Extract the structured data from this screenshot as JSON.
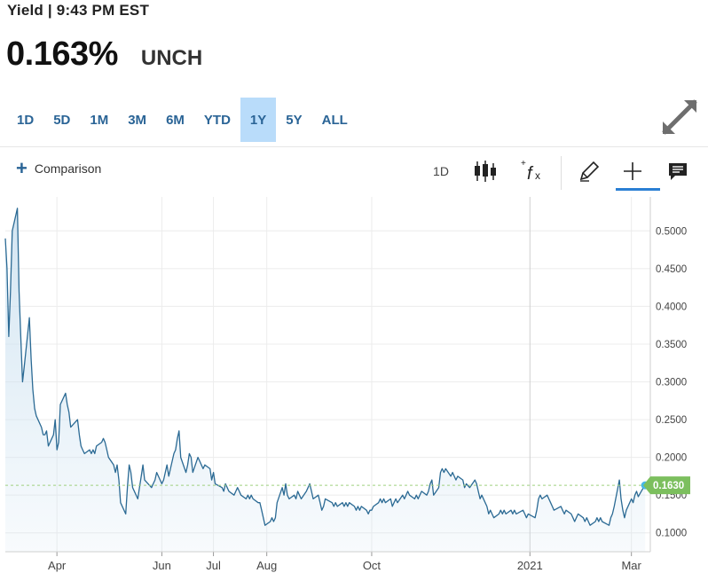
{
  "header": {
    "title": "Yield | 9:43 PM EST"
  },
  "quote": {
    "price": "0.163%",
    "change": "UNCH"
  },
  "ranges": {
    "items": [
      "1D",
      "5D",
      "1M",
      "3M",
      "6M",
      "YTD",
      "1Y",
      "5Y",
      "ALL"
    ],
    "active": "1Y"
  },
  "toolbar": {
    "comparison_label": "Comparison",
    "interval_label": "1D",
    "icons": [
      "candlestick-icon",
      "function-icon",
      "pencil-icon",
      "crosshair-icon",
      "comment-icon"
    ]
  },
  "colors": {
    "line": "#2b6a94",
    "fill": "#cfe3f1",
    "accent": "#2a6496",
    "active_range": "#b9dcfa",
    "last_price_tag": "#7cbf5e"
  },
  "chart_data": {
    "type": "area",
    "last_value_label": "0.1630",
    "last_value": 0.163,
    "ylim": [
      0.075,
      0.545
    ],
    "y_ticks": [
      "0.5000",
      "0.4500",
      "0.4000",
      "0.3500",
      "0.3000",
      "0.2500",
      "0.2000",
      "0.1500",
      "0.1000"
    ],
    "x_ticks": [
      "Apr",
      "Jun",
      "Jul",
      "Aug",
      "Oct",
      "2021",
      "Mar"
    ],
    "grid": true,
    "x_start": "2020-03-02",
    "x_end": "2021-03-12",
    "series": [
      {
        "values": [
          [
            "2020-03-02",
            0.49
          ],
          [
            "2020-03-03",
            0.45
          ],
          [
            "2020-03-04",
            0.36
          ],
          [
            "2020-03-05",
            0.42
          ],
          [
            "2020-03-06",
            0.5
          ],
          [
            "2020-03-09",
            0.53
          ],
          [
            "2020-03-10",
            0.42
          ],
          [
            "2020-03-11",
            0.36
          ],
          [
            "2020-03-12",
            0.3
          ],
          [
            "2020-03-13",
            0.32
          ],
          [
            "2020-03-16",
            0.385
          ],
          [
            "2020-03-17",
            0.33
          ],
          [
            "2020-03-18",
            0.29
          ],
          [
            "2020-03-19",
            0.265
          ],
          [
            "2020-03-20",
            0.255
          ],
          [
            "2020-03-23",
            0.24
          ],
          [
            "2020-03-24",
            0.23
          ],
          [
            "2020-03-25",
            0.23
          ],
          [
            "2020-03-26",
            0.235
          ],
          [
            "2020-03-27",
            0.215
          ],
          [
            "2020-03-30",
            0.23
          ],
          [
            "2020-03-31",
            0.25
          ],
          [
            "2020-04-01",
            0.21
          ],
          [
            "2020-04-02",
            0.22
          ],
          [
            "2020-04-03",
            0.27
          ],
          [
            "2020-04-06",
            0.285
          ],
          [
            "2020-04-07",
            0.27
          ],
          [
            "2020-04-08",
            0.26
          ],
          [
            "2020-04-09",
            0.24
          ],
          [
            "2020-04-13",
            0.25
          ],
          [
            "2020-04-14",
            0.23
          ],
          [
            "2020-04-15",
            0.215
          ],
          [
            "2020-04-16",
            0.21
          ],
          [
            "2020-04-17",
            0.205
          ],
          [
            "2020-04-20",
            0.21
          ],
          [
            "2020-04-21",
            0.205
          ],
          [
            "2020-04-22",
            0.21
          ],
          [
            "2020-04-23",
            0.205
          ],
          [
            "2020-04-24",
            0.215
          ],
          [
            "2020-04-27",
            0.22
          ],
          [
            "2020-04-28",
            0.225
          ],
          [
            "2020-04-29",
            0.22
          ],
          [
            "2020-04-30",
            0.21
          ],
          [
            "2020-05-01",
            0.2
          ],
          [
            "2020-05-04",
            0.19
          ],
          [
            "2020-05-05",
            0.18
          ],
          [
            "2020-05-06",
            0.19
          ],
          [
            "2020-05-07",
            0.17
          ],
          [
            "2020-05-08",
            0.14
          ],
          [
            "2020-05-11",
            0.125
          ],
          [
            "2020-05-12",
            0.16
          ],
          [
            "2020-05-13",
            0.19
          ],
          [
            "2020-05-14",
            0.18
          ],
          [
            "2020-05-15",
            0.16
          ],
          [
            "2020-05-18",
            0.145
          ],
          [
            "2020-05-19",
            0.16
          ],
          [
            "2020-05-20",
            0.175
          ],
          [
            "2020-05-21",
            0.19
          ],
          [
            "2020-05-22",
            0.17
          ],
          [
            "2020-05-26",
            0.16
          ],
          [
            "2020-05-27",
            0.165
          ],
          [
            "2020-05-28",
            0.17
          ],
          [
            "2020-05-29",
            0.18
          ],
          [
            "2020-06-01",
            0.165
          ],
          [
            "2020-06-02",
            0.17
          ],
          [
            "2020-06-03",
            0.18
          ],
          [
            "2020-06-04",
            0.19
          ],
          [
            "2020-06-05",
            0.175
          ],
          [
            "2020-06-08",
            0.205
          ],
          [
            "2020-06-09",
            0.21
          ],
          [
            "2020-06-10",
            0.225
          ],
          [
            "2020-06-11",
            0.235
          ],
          [
            "2020-06-12",
            0.2
          ],
          [
            "2020-06-15",
            0.18
          ],
          [
            "2020-06-16",
            0.19
          ],
          [
            "2020-06-17",
            0.205
          ],
          [
            "2020-06-18",
            0.2
          ],
          [
            "2020-06-19",
            0.18
          ],
          [
            "2020-06-22",
            0.2
          ],
          [
            "2020-06-23",
            0.195
          ],
          [
            "2020-06-24",
            0.19
          ],
          [
            "2020-06-25",
            0.185
          ],
          [
            "2020-06-26",
            0.19
          ],
          [
            "2020-06-29",
            0.185
          ],
          [
            "2020-06-30",
            0.17
          ],
          [
            "2020-07-01",
            0.18
          ],
          [
            "2020-07-02",
            0.165
          ],
          [
            "2020-07-06",
            0.16
          ],
          [
            "2020-07-07",
            0.155
          ],
          [
            "2020-07-08",
            0.165
          ],
          [
            "2020-07-09",
            0.16
          ],
          [
            "2020-07-10",
            0.155
          ],
          [
            "2020-07-13",
            0.15
          ],
          [
            "2020-07-14",
            0.155
          ],
          [
            "2020-07-15",
            0.16
          ],
          [
            "2020-07-16",
            0.155
          ],
          [
            "2020-07-17",
            0.15
          ],
          [
            "2020-07-20",
            0.145
          ],
          [
            "2020-07-21",
            0.15
          ],
          [
            "2020-07-22",
            0.145
          ],
          [
            "2020-07-23",
            0.15
          ],
          [
            "2020-07-24",
            0.145
          ],
          [
            "2020-07-27",
            0.14
          ],
          [
            "2020-07-28",
            0.14
          ],
          [
            "2020-07-29",
            0.13
          ],
          [
            "2020-07-30",
            0.12
          ],
          [
            "2020-07-31",
            0.11
          ],
          [
            "2020-08-03",
            0.115
          ],
          [
            "2020-08-04",
            0.12
          ],
          [
            "2020-08-05",
            0.115
          ],
          [
            "2020-08-06",
            0.12
          ],
          [
            "2020-08-07",
            0.14
          ],
          [
            "2020-08-10",
            0.16
          ],
          [
            "2020-08-11",
            0.15
          ],
          [
            "2020-08-12",
            0.165
          ],
          [
            "2020-08-13",
            0.15
          ],
          [
            "2020-08-14",
            0.145
          ],
          [
            "2020-08-17",
            0.15
          ],
          [
            "2020-08-18",
            0.145
          ],
          [
            "2020-08-19",
            0.155
          ],
          [
            "2020-08-20",
            0.15
          ],
          [
            "2020-08-21",
            0.145
          ],
          [
            "2020-08-24",
            0.155
          ],
          [
            "2020-08-25",
            0.16
          ],
          [
            "2020-08-26",
            0.165
          ],
          [
            "2020-08-27",
            0.155
          ],
          [
            "2020-08-28",
            0.145
          ],
          [
            "2020-08-31",
            0.15
          ],
          [
            "2020-09-01",
            0.14
          ],
          [
            "2020-09-02",
            0.13
          ],
          [
            "2020-09-03",
            0.135
          ],
          [
            "2020-09-04",
            0.145
          ],
          [
            "2020-09-08",
            0.14
          ],
          [
            "2020-09-09",
            0.135
          ],
          [
            "2020-09-10",
            0.14
          ],
          [
            "2020-09-11",
            0.135
          ],
          [
            "2020-09-14",
            0.14
          ],
          [
            "2020-09-15",
            0.135
          ],
          [
            "2020-09-16",
            0.14
          ],
          [
            "2020-09-17",
            0.135
          ],
          [
            "2020-09-18",
            0.14
          ],
          [
            "2020-09-21",
            0.135
          ],
          [
            "2020-09-22",
            0.13
          ],
          [
            "2020-09-23",
            0.135
          ],
          [
            "2020-09-24",
            0.13
          ],
          [
            "2020-09-25",
            0.135
          ],
          [
            "2020-09-28",
            0.13
          ],
          [
            "2020-09-29",
            0.125
          ],
          [
            "2020-09-30",
            0.13
          ],
          [
            "2020-10-01",
            0.13
          ],
          [
            "2020-10-02",
            0.135
          ],
          [
            "2020-10-05",
            0.14
          ],
          [
            "2020-10-06",
            0.145
          ],
          [
            "2020-10-07",
            0.14
          ],
          [
            "2020-10-08",
            0.145
          ],
          [
            "2020-10-09",
            0.14
          ],
          [
            "2020-10-12",
            0.145
          ],
          [
            "2020-10-13",
            0.135
          ],
          [
            "2020-10-14",
            0.14
          ],
          [
            "2020-10-15",
            0.145
          ],
          [
            "2020-10-16",
            0.14
          ],
          [
            "2020-10-19",
            0.15
          ],
          [
            "2020-10-20",
            0.145
          ],
          [
            "2020-10-21",
            0.15
          ],
          [
            "2020-10-22",
            0.155
          ],
          [
            "2020-10-23",
            0.15
          ],
          [
            "2020-10-26",
            0.145
          ],
          [
            "2020-10-27",
            0.15
          ],
          [
            "2020-10-28",
            0.145
          ],
          [
            "2020-10-29",
            0.15
          ],
          [
            "2020-10-30",
            0.155
          ],
          [
            "2020-11-02",
            0.15
          ],
          [
            "2020-11-03",
            0.155
          ],
          [
            "2020-11-04",
            0.165
          ],
          [
            "2020-11-05",
            0.17
          ],
          [
            "2020-11-06",
            0.15
          ],
          [
            "2020-11-09",
            0.16
          ],
          [
            "2020-11-10",
            0.18
          ],
          [
            "2020-11-11",
            0.185
          ],
          [
            "2020-11-12",
            0.18
          ],
          [
            "2020-11-13",
            0.185
          ],
          [
            "2020-11-16",
            0.175
          ],
          [
            "2020-11-17",
            0.18
          ],
          [
            "2020-11-18",
            0.175
          ],
          [
            "2020-11-19",
            0.17
          ],
          [
            "2020-11-20",
            0.175
          ],
          [
            "2020-11-23",
            0.17
          ],
          [
            "2020-11-24",
            0.16
          ],
          [
            "2020-11-25",
            0.165
          ],
          [
            "2020-11-27",
            0.16
          ],
          [
            "2020-11-30",
            0.17
          ],
          [
            "2020-12-01",
            0.165
          ],
          [
            "2020-12-02",
            0.155
          ],
          [
            "2020-12-03",
            0.145
          ],
          [
            "2020-12-04",
            0.15
          ],
          [
            "2020-12-07",
            0.135
          ],
          [
            "2020-12-08",
            0.125
          ],
          [
            "2020-12-09",
            0.13
          ],
          [
            "2020-12-10",
            0.125
          ],
          [
            "2020-12-11",
            0.12
          ],
          [
            "2020-12-14",
            0.125
          ],
          [
            "2020-12-15",
            0.13
          ],
          [
            "2020-12-16",
            0.125
          ],
          [
            "2020-12-17",
            0.13
          ],
          [
            "2020-12-18",
            0.125
          ],
          [
            "2020-12-21",
            0.13
          ],
          [
            "2020-12-22",
            0.125
          ],
          [
            "2020-12-23",
            0.13
          ],
          [
            "2020-12-24",
            0.125
          ],
          [
            "2020-12-28",
            0.13
          ],
          [
            "2020-12-29",
            0.125
          ],
          [
            "2020-12-30",
            0.12
          ],
          [
            "2020-12-31",
            0.125
          ],
          [
            "2021-01-04",
            0.12
          ],
          [
            "2021-01-05",
            0.13
          ],
          [
            "2021-01-06",
            0.145
          ],
          [
            "2021-01-07",
            0.15
          ],
          [
            "2021-01-08",
            0.145
          ],
          [
            "2021-01-11",
            0.15
          ],
          [
            "2021-01-12",
            0.145
          ],
          [
            "2021-01-13",
            0.14
          ],
          [
            "2021-01-14",
            0.135
          ],
          [
            "2021-01-15",
            0.13
          ],
          [
            "2021-01-19",
            0.135
          ],
          [
            "2021-01-20",
            0.13
          ],
          [
            "2021-01-21",
            0.125
          ],
          [
            "2021-01-22",
            0.13
          ],
          [
            "2021-01-25",
            0.125
          ],
          [
            "2021-01-26",
            0.12
          ],
          [
            "2021-01-27",
            0.115
          ],
          [
            "2021-01-28",
            0.12
          ],
          [
            "2021-01-29",
            0.125
          ],
          [
            "2021-02-01",
            0.12
          ],
          [
            "2021-02-02",
            0.115
          ],
          [
            "2021-02-03",
            0.12
          ],
          [
            "2021-02-04",
            0.115
          ],
          [
            "2021-02-05",
            0.11
          ],
          [
            "2021-02-08",
            0.115
          ],
          [
            "2021-02-09",
            0.12
          ],
          [
            "2021-02-10",
            0.115
          ],
          [
            "2021-02-11",
            0.12
          ],
          [
            "2021-02-12",
            0.115
          ],
          [
            "2021-02-16",
            0.11
          ],
          [
            "2021-02-17",
            0.12
          ],
          [
            "2021-02-18",
            0.125
          ],
          [
            "2021-02-19",
            0.135
          ],
          [
            "2021-02-22",
            0.17
          ],
          [
            "2021-02-23",
            0.145
          ],
          [
            "2021-02-24",
            0.13
          ],
          [
            "2021-02-25",
            0.12
          ],
          [
            "2021-02-26",
            0.13
          ],
          [
            "2021-03-01",
            0.145
          ],
          [
            "2021-03-02",
            0.14
          ],
          [
            "2021-03-03",
            0.15
          ],
          [
            "2021-03-04",
            0.155
          ],
          [
            "2021-03-05",
            0.148
          ],
          [
            "2021-03-08",
            0.16
          ],
          [
            "2021-03-09",
            0.163
          ]
        ]
      }
    ]
  }
}
